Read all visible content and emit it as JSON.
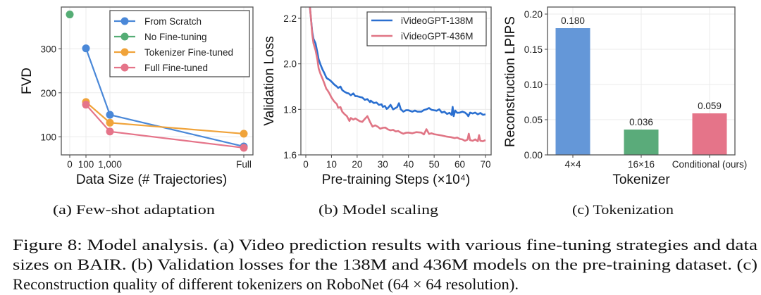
{
  "figure": {
    "caption_lines": [
      "Figure 8: Model analysis. (a) Video prediction results with various fine-tuning strategies and data",
      "sizes on BAIR. (b) Validation losses for the 138M and 436M models on the pre-training dataset. (c)",
      "Reconstruction quality of different tokenizers on RoboNet (64 × 64 resolution)."
    ],
    "subcaptions": [
      "(a) Few-shot adaptation",
      "(b) Model scaling",
      "(c) Tokenization"
    ]
  },
  "chart_data": [
    {
      "type": "line",
      "title": "",
      "xlabel": "Data Size (# Trajectories)",
      "ylabel": "FVD",
      "categories": [
        "0",
        "100",
        "1,000",
        "Full"
      ],
      "yticks": [
        100,
        200,
        300
      ],
      "ylim": [
        60,
        390
      ],
      "grid": true,
      "legend_position": "top-right",
      "series": [
        {
          "name": "From Scratch",
          "color": "#4a88d8",
          "points": [
            {
              "x": "100",
              "y": 301
            },
            {
              "x": "1,000",
              "y": 150
            },
            {
              "x": "Full",
              "y": 78
            }
          ]
        },
        {
          "name": "No Fine-tuning",
          "color": "#55ad75",
          "points": [
            {
              "x": "0",
              "y": 378
            }
          ]
        },
        {
          "name": "Tokenizer Fine-tuned",
          "color": "#f0a33a",
          "points": [
            {
              "x": "100",
              "y": 179
            },
            {
              "x": "1,000",
              "y": 132
            },
            {
              "x": "Full",
              "y": 107
            }
          ]
        },
        {
          "name": "Full Fine-tuned",
          "color": "#e57489",
          "points": [
            {
              "x": "100",
              "y": 173
            },
            {
              "x": "1,000",
              "y": 112
            },
            {
              "x": "Full",
              "y": 75
            }
          ]
        }
      ]
    },
    {
      "type": "line",
      "title": "",
      "xlabel": "Pre-training Steps (×10⁴)",
      "ylabel": "Validation Loss",
      "xticks": [
        0,
        10,
        20,
        30,
        40,
        50,
        60,
        70
      ],
      "yticks": [
        "1.6",
        "1.8",
        "2.0",
        "2.2"
      ],
      "xlim": [
        -1.9,
        72.2
      ],
      "ylim": [
        1.6,
        2.25
      ],
      "grid": true,
      "legend_position": "top-right",
      "series": [
        {
          "name": "iVideoGPT-138M",
          "color": "#2a6fd0",
          "x": [
            1.5,
            2.0,
            2.5,
            3.0,
            3.8,
            4.5,
            5.0,
            5.7,
            6.5,
            7.2,
            8.0,
            8.4,
            9.2,
            10.0,
            11.0,
            12.1,
            12.6,
            13.5,
            14.2,
            15.0,
            16.0,
            16.7,
            17.5,
            18.5,
            19.3,
            20.0,
            21.2,
            22.0,
            23.0,
            24.0,
            25.0,
            25.3,
            26.5,
            27.5,
            28.5,
            29.5,
            30.0,
            30.8,
            31.5,
            32.0,
            33.0,
            34.0,
            35.0,
            35.6,
            36.3,
            37.0,
            38.0,
            39.0,
            40.0,
            41.5,
            42.5,
            43.5,
            45.0,
            46.0,
            47.0,
            48.0,
            49.0,
            50.0,
            51.0,
            52.0,
            53.0,
            54.0,
            55.0,
            56.0,
            56.8,
            57.2,
            57.6,
            58.2,
            59.0,
            60.0,
            61.0,
            62.0,
            62.8,
            63.3,
            64.0,
            65.0,
            66.0,
            67.0,
            68.0,
            69.0,
            70.0
          ],
          "y": [
            2.26,
            2.2,
            2.14,
            2.11,
            2.09,
            2.05,
            2.02,
            1.997,
            1.975,
            1.96,
            1.94,
            1.935,
            1.93,
            1.922,
            1.91,
            1.9,
            1.894,
            1.9,
            1.885,
            1.878,
            1.872,
            1.87,
            1.862,
            1.87,
            1.858,
            1.858,
            1.854,
            1.852,
            1.842,
            1.845,
            1.832,
            1.838,
            1.828,
            1.83,
            1.82,
            1.822,
            1.811,
            1.815,
            1.802,
            1.806,
            1.82,
            1.8,
            1.806,
            1.81,
            1.827,
            1.8,
            1.79,
            1.796,
            1.796,
            1.79,
            1.795,
            1.79,
            1.79,
            1.797,
            1.8,
            1.806,
            1.798,
            1.796,
            1.794,
            1.8,
            1.786,
            1.79,
            1.78,
            1.785,
            1.775,
            1.811,
            1.77,
            1.795,
            1.785,
            1.786,
            1.79,
            1.786,
            1.778,
            1.77,
            1.786,
            1.782,
            1.786,
            1.778,
            1.784,
            1.776,
            1.778
          ]
        },
        {
          "name": "iVideoGPT-436M",
          "color": "#e07585",
          "x": [
            1.5,
            2.0,
            2.5,
            3.0,
            3.8,
            4.5,
            5.0,
            5.7,
            6.5,
            7.2,
            8.0,
            8.4,
            9.2,
            10.0,
            11.0,
            12.1,
            12.6,
            13.5,
            14.2,
            15.0,
            16.0,
            17.0,
            17.5,
            18.5,
            19.3,
            20.0,
            21.0,
            22.0,
            23.0,
            24.0,
            25.0,
            26.0,
            27.0,
            28.0,
            29.0,
            30.0,
            31.0,
            32.0,
            33.0,
            34.0,
            35.0,
            36.0,
            37.0,
            38.0,
            39.0,
            40.0,
            41.5,
            43.0,
            45.0,
            46.0,
            47.0,
            48.0,
            49.0,
            50.0,
            51.5,
            53.0,
            55.0,
            56.5,
            58.0,
            59.0,
            60.0,
            61.0,
            62.0,
            63.0,
            63.5,
            64.0,
            65.0,
            66.0,
            67.0,
            67.5,
            68.0,
            69.0,
            70.0
          ],
          "y": [
            2.26,
            2.2,
            2.13,
            2.09,
            2.06,
            2.02,
            1.98,
            1.956,
            1.935,
            1.915,
            1.89,
            1.885,
            1.87,
            1.852,
            1.835,
            1.823,
            1.807,
            1.81,
            1.79,
            1.78,
            1.77,
            1.749,
            1.762,
            1.755,
            1.76,
            1.755,
            1.748,
            1.745,
            1.758,
            1.77,
            1.745,
            1.724,
            1.73,
            1.724,
            1.715,
            1.719,
            1.72,
            1.712,
            1.708,
            1.71,
            1.703,
            1.705,
            1.698,
            1.693,
            1.697,
            1.698,
            1.695,
            1.7,
            1.698,
            1.69,
            1.713,
            1.692,
            1.695,
            1.691,
            1.688,
            1.685,
            1.68,
            1.678,
            1.674,
            1.676,
            1.67,
            1.668,
            1.662,
            1.667,
            1.693,
            1.665,
            1.662,
            1.668,
            1.66,
            1.687,
            1.662,
            1.66,
            1.665
          ]
        }
      ]
    },
    {
      "type": "bar",
      "title": "",
      "xlabel": "Tokenizer",
      "ylabel": "Reconstruction LPIPS",
      "categories": [
        "4×4",
        "16×16",
        "Conditional (ours)"
      ],
      "values": [
        0.18,
        0.036,
        0.059
      ],
      "data_labels": [
        "0.180",
        "0.036",
        "0.059"
      ],
      "colors": [
        "#6497d8",
        "#5aab7a",
        "#e57489"
      ],
      "yticks": [
        "0.00",
        "0.05",
        "0.10",
        "0.15",
        "0.20"
      ],
      "ylim": [
        0,
        0.21
      ],
      "grid": true
    }
  ]
}
